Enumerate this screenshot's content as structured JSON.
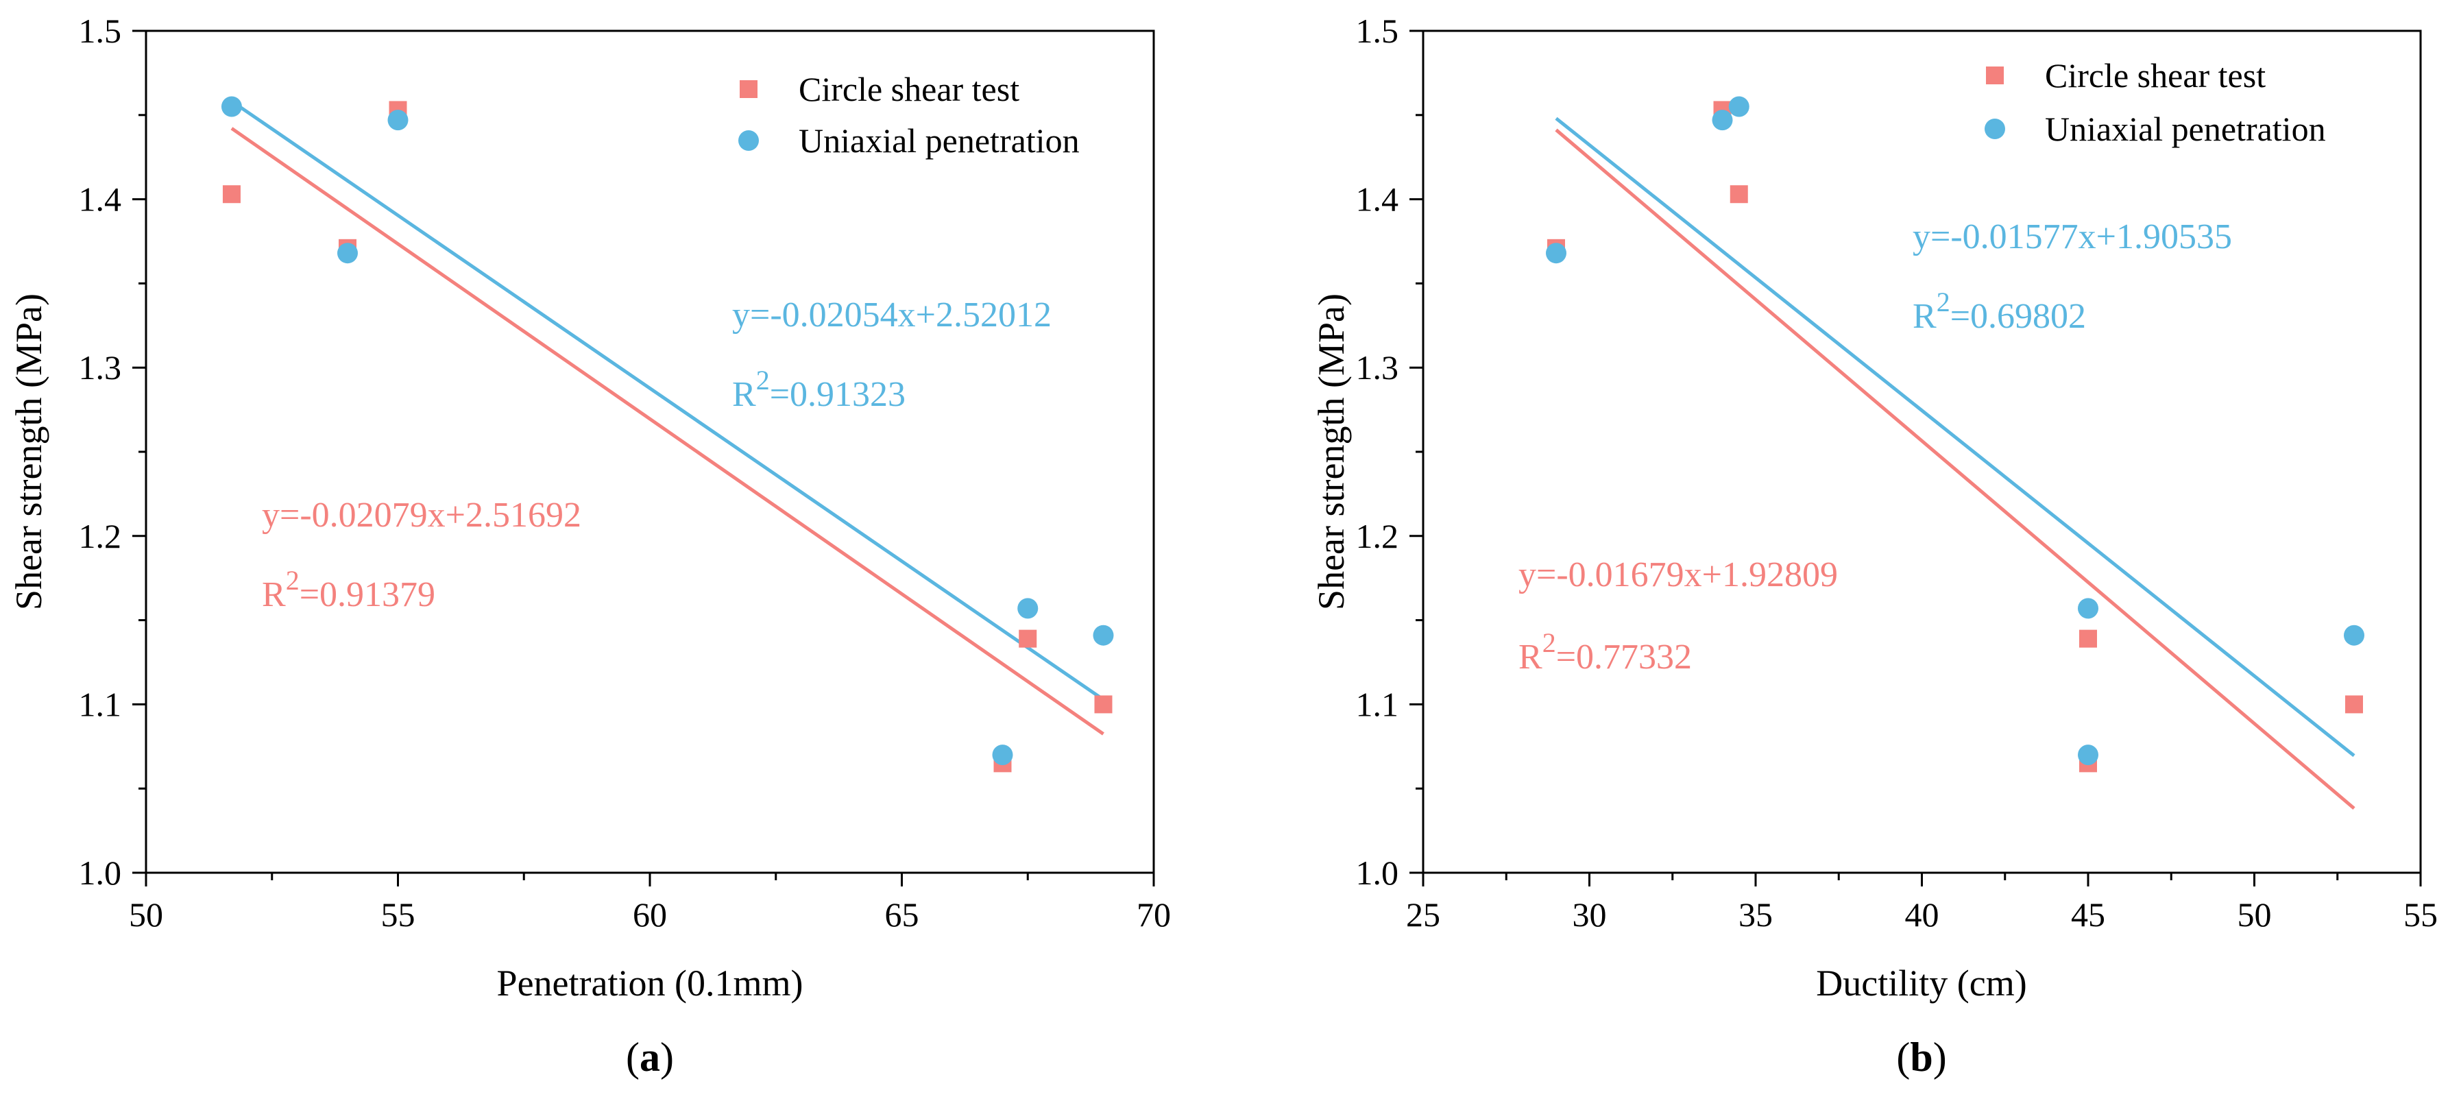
{
  "colors": {
    "red": "#f4817d",
    "blue": "#5ab6e0",
    "axis": "#000000"
  },
  "chart_data": [
    {
      "type": "scatter",
      "panel_label": "a",
      "xlabel": "Penetration (0.1mm)",
      "ylabel": "Shear strength (MPa)",
      "xlim": [
        50,
        70
      ],
      "ylim": [
        1.0,
        1.5
      ],
      "x_ticks": [
        50,
        55,
        60,
        65,
        70
      ],
      "y_ticks": [
        1.0,
        1.1,
        1.2,
        1.3,
        1.4,
        1.5
      ],
      "x_tick_labels": [
        "50",
        "55",
        "60",
        "65",
        "70"
      ],
      "y_tick_labels": [
        "1.0",
        "1.1",
        "1.2",
        "1.3",
        "1.4",
        "1.5"
      ],
      "legend": [
        "Circle shear test",
        "Uniaxial penetration"
      ],
      "series": [
        {
          "name": "Circle shear test",
          "marker": "square",
          "color": "#f4817d",
          "x": [
            51.7,
            54.0,
            55.0,
            67.0,
            67.5,
            69.0
          ],
          "y": [
            1.403,
            1.371,
            1.453,
            1.065,
            1.139,
            1.1
          ],
          "fit": {
            "slope": -0.02079,
            "intercept": 2.51692,
            "x_range": [
              51.7,
              69.0
            ]
          },
          "equation": "y=-0.02079x+2.51692",
          "r2_prefix": "R",
          "r2_sup": "2",
          "r2_value": "=0.91379"
        },
        {
          "name": "Uniaxial penetration",
          "marker": "circle",
          "color": "#5ab6e0",
          "x": [
            51.7,
            54.0,
            55.0,
            67.0,
            67.5,
            69.0
          ],
          "y": [
            1.455,
            1.368,
            1.447,
            1.07,
            1.157,
            1.141
          ],
          "fit": {
            "slope": -0.02054,
            "intercept": 2.52012,
            "x_range": [
              51.7,
              69.0
            ]
          },
          "equation": "y=-0.02054x+2.52012",
          "r2_prefix": "R",
          "r2_sup": "2",
          "r2_value": "=0.91323"
        }
      ]
    },
    {
      "type": "scatter",
      "panel_label": "b",
      "xlabel": "Ductility (cm)",
      "ylabel": "Shear strength (MPa)",
      "xlim": [
        25,
        55
      ],
      "ylim": [
        1.0,
        1.5
      ],
      "x_ticks": [
        25,
        30,
        35,
        40,
        45,
        50,
        55
      ],
      "y_ticks": [
        1.0,
        1.1,
        1.2,
        1.3,
        1.4,
        1.5
      ],
      "x_tick_labels": [
        "25",
        "30",
        "35",
        "40",
        "45",
        "50",
        "55"
      ],
      "y_tick_labels": [
        "1.0",
        "1.1",
        "1.2",
        "1.3",
        "1.4",
        "1.5"
      ],
      "legend": [
        "Circle shear test",
        "Uniaxial penetration"
      ],
      "series": [
        {
          "name": "Circle shear test",
          "marker": "square",
          "color": "#f4817d",
          "x": [
            29.0,
            34.0,
            34.5,
            45.0,
            45.0,
            53.0
          ],
          "y": [
            1.371,
            1.453,
            1.403,
            1.139,
            1.065,
            1.1
          ],
          "fit": {
            "slope": -0.01679,
            "intercept": 1.92809,
            "x_range": [
              29.0,
              53.0
            ]
          },
          "equation": "y=-0.01679x+1.92809",
          "r2_prefix": "R",
          "r2_sup": "2",
          "r2_value": "=0.77332"
        },
        {
          "name": "Uniaxial penetration",
          "marker": "circle",
          "color": "#5ab6e0",
          "x": [
            29.0,
            34.0,
            34.5,
            45.0,
            45.0,
            53.0
          ],
          "y": [
            1.368,
            1.447,
            1.455,
            1.157,
            1.07,
            1.141
          ],
          "fit": {
            "slope": -0.01577,
            "intercept": 1.90535,
            "x_range": [
              29.0,
              53.0
            ]
          },
          "equation": "y=-0.01577x+1.90535",
          "r2_prefix": "R",
          "r2_sup": "2",
          "r2_value": "=0.69802"
        }
      ]
    }
  ]
}
